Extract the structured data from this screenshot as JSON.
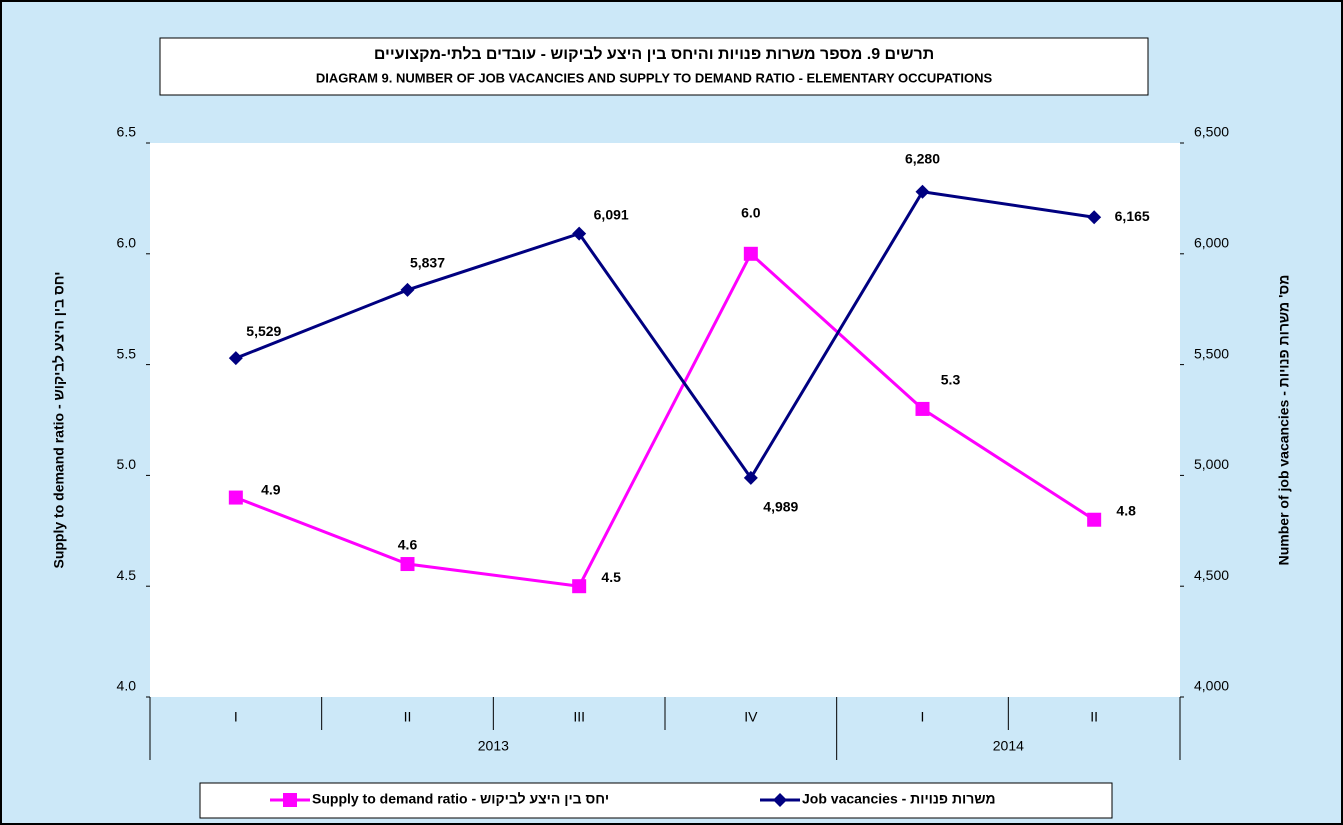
{
  "chart_data": {
    "type": "line",
    "title": "תרשים 9. מספר משרות פנויות והיחס בין היצע לביקוש - עובדים בלתי-מקצועיים",
    "subtitle": "DIAGRAM 9. NUMBER OF JOB VACANCIES AND SUPPLY TO DEMAND RATIO - ELEMENTARY OCCUPATIONS",
    "category_groups": [
      {
        "name": "2013",
        "categories": [
          "I",
          "II",
          "III",
          "IV"
        ]
      },
      {
        "name": "2014",
        "categories": [
          "I",
          "II"
        ]
      }
    ],
    "ylabel": "Supply to demand ratio - יחס בין היצע לביקוש",
    "y2label": "Number of job vacancies - מס' משרות פנויות",
    "ylim": [
      4.0,
      6.5
    ],
    "yticks": [
      {
        "value": 4.0,
        "label": "4.0"
      },
      {
        "value": 4.5,
        "label": "4.5"
      },
      {
        "value": 5.0,
        "label": "5.0"
      },
      {
        "value": 5.5,
        "label": "5.5"
      },
      {
        "value": 6.0,
        "label": "6.0"
      },
      {
        "value": 6.5,
        "label": "6.5"
      }
    ],
    "y2lim": [
      4000,
      6500
    ],
    "y2ticks": [
      {
        "value": 4000,
        "label": "4,000"
      },
      {
        "value": 4500,
        "label": "4,500"
      },
      {
        "value": 5000,
        "label": "5,000"
      },
      {
        "value": 5500,
        "label": "5,500"
      },
      {
        "value": 6000,
        "label": "6,000"
      },
      {
        "value": 6500,
        "label": "6,500"
      }
    ],
    "grid": false,
    "legend": "bottom",
    "series": [
      {
        "name": "Supply to demand ratio - יחס בין היצע לביקוש",
        "color": "#ff00ff",
        "marker": "square",
        "axis": "y",
        "values": [
          4.9,
          4.6,
          4.5,
          6.0,
          5.3,
          4.8
        ],
        "value_labels": [
          "4.9",
          "4.6",
          "4.5",
          "6.0",
          "5.3",
          "4.8"
        ]
      },
      {
        "name": "Job vacancies - משרות פנויות",
        "color": "#000080",
        "marker": "diamond",
        "axis": "y2",
        "values": [
          5529,
          5837,
          6091,
          4989,
          6280,
          6165
        ],
        "value_labels": [
          "5,529",
          "5,837",
          "6,091",
          "4,989",
          "6,280",
          "6,165"
        ]
      }
    ]
  }
}
